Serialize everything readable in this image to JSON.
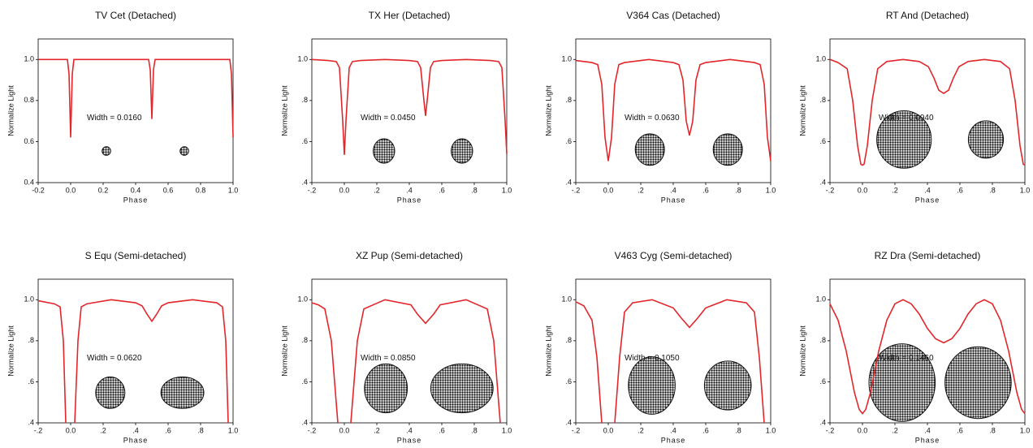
{
  "chart_data": [
    {
      "type": "line",
      "title": "TV Cet (Detached)",
      "xlabel": "Phase",
      "ylabel": "Normalize Light",
      "annotation": "Width = 0.0160",
      "color": "#e3262b",
      "xlim": [
        -0.2,
        1.0
      ],
      "ylim": [
        0.4,
        1.1
      ],
      "xticks": [
        {
          "value": -0.2,
          "label": "-0.2"
        },
        {
          "value": 0,
          "label": "0.0"
        },
        0.2,
        0.4,
        0.6,
        0.8,
        {
          "value": 1,
          "label": "1.0"
        }
      ],
      "yticks": [
        0.4,
        0.6,
        0.8,
        {
          "value": 1,
          "label": "1.0"
        }
      ],
      "x": [
        -0.2,
        -0.02,
        -0.01,
        0,
        0.01,
        0.02,
        0.48,
        0.49,
        0.5,
        0.51,
        0.52,
        0.98,
        0.99,
        1.0
      ],
      "values": [
        1,
        1,
        0.93,
        0.62,
        0.93,
        1,
        1,
        0.95,
        0.71,
        0.95,
        1,
        1,
        0.93,
        0.62
      ]
    },
    {
      "type": "line",
      "title": "TX Her (Detached)",
      "xlabel": "Phase",
      "ylabel": "Normalize Light",
      "annotation": "Width = 0.0450",
      "color": "#e3262b",
      "xlim": [
        -0.2,
        1.0
      ],
      "ylim": [
        0.4,
        1.1
      ],
      "xticks": [
        {
          "value": -0.2,
          "label": "-.2"
        },
        {
          "value": 0,
          "label": "0.0"
        },
        {
          "value": 0.2,
          "label": ".2"
        },
        {
          "value": 0.4,
          "label": ".4"
        },
        {
          "value": 0.6,
          "label": ".6"
        },
        {
          "value": 0.8,
          "label": ".8"
        },
        {
          "value": 1,
          "label": "1.0"
        }
      ],
      "yticks": [
        {
          "value": 0.4,
          "label": ".4"
        },
        {
          "value": 0.6,
          "label": ".6"
        },
        {
          "value": 0.8,
          "label": ".8"
        },
        {
          "value": 1,
          "label": "1.0"
        }
      ],
      "x": [
        -0.2,
        -0.1,
        -0.05,
        -0.03,
        -0.01,
        0,
        0.01,
        0.03,
        0.05,
        0.1,
        0.25,
        0.4,
        0.45,
        0.47,
        0.49,
        0.5,
        0.51,
        0.53,
        0.55,
        0.6,
        0.75,
        0.9,
        0.95,
        0.97,
        0.99,
        1.0
      ],
      "values": [
        1.0,
        0.995,
        0.99,
        0.96,
        0.7,
        0.535,
        0.7,
        0.96,
        0.99,
        0.995,
        1.0,
        0.995,
        0.99,
        0.96,
        0.8,
        0.725,
        0.8,
        0.96,
        0.99,
        0.995,
        1.0,
        0.995,
        0.99,
        0.96,
        0.7,
        0.54
      ]
    },
    {
      "type": "line",
      "title": "V364 Cas (Detached)",
      "xlabel": "Phase",
      "ylabel": "Normalize Light",
      "annotation": "Width = 0.0630",
      "color": "#e3262b",
      "xlim": [
        -0.2,
        1.0
      ],
      "ylim": [
        0.4,
        1.1
      ],
      "xticks": [
        {
          "value": -0.2,
          "label": "-.2"
        },
        {
          "value": 0,
          "label": "0.0"
        },
        {
          "value": 0.2,
          "label": ".2"
        },
        {
          "value": 0.4,
          "label": ".4"
        },
        {
          "value": 0.6,
          "label": ".6"
        },
        {
          "value": 0.8,
          "label": ".8"
        },
        {
          "value": 1,
          "label": "1.0"
        }
      ],
      "yticks": [
        {
          "value": 0.4,
          "label": ".4"
        },
        {
          "value": 0.6,
          "label": ".6"
        },
        {
          "value": 0.8,
          "label": ".8"
        },
        {
          "value": 1,
          "label": "1.0"
        }
      ],
      "x": [
        -0.2,
        -0.1,
        -0.065,
        -0.04,
        -0.02,
        0,
        0.02,
        0.04,
        0.065,
        0.1,
        0.25,
        0.4,
        0.435,
        0.46,
        0.48,
        0.5,
        0.52,
        0.54,
        0.565,
        0.6,
        0.75,
        0.9,
        0.935,
        0.96,
        0.98,
        1.0
      ],
      "values": [
        0.995,
        0.985,
        0.975,
        0.88,
        0.62,
        0.505,
        0.62,
        0.88,
        0.975,
        0.985,
        1.0,
        0.985,
        0.975,
        0.9,
        0.7,
        0.63,
        0.7,
        0.9,
        0.975,
        0.985,
        1.0,
        0.985,
        0.975,
        0.88,
        0.62,
        0.505
      ]
    },
    {
      "type": "line",
      "title": "RT And (Detached)",
      "xlabel": "Phase",
      "ylabel": "Normalize Light",
      "annotation": "Width = 0.0940",
      "color": "#e3262b",
      "xlim": [
        -0.2,
        1.0
      ],
      "ylim": [
        0.4,
        1.1
      ],
      "xticks": [
        {
          "value": -0.2,
          "label": "-.2"
        },
        {
          "value": 0,
          "label": "0.0"
        },
        {
          "value": 0.2,
          "label": ".2"
        },
        {
          "value": 0.4,
          "label": ".4"
        },
        {
          "value": 0.6,
          "label": ".6"
        },
        {
          "value": 0.8,
          "label": ".8"
        },
        {
          "value": 1,
          "label": "1.0"
        }
      ],
      "yticks": [
        {
          "value": 0.4,
          "label": ".4"
        },
        {
          "value": 0.6,
          "label": ".6"
        },
        {
          "value": 0.8,
          "label": ".8"
        },
        {
          "value": 1,
          "label": "1.0"
        }
      ],
      "x": [
        -0.2,
        -0.15,
        -0.094,
        -0.06,
        -0.03,
        -0.01,
        0,
        0.01,
        0.03,
        0.06,
        0.094,
        0.15,
        0.25,
        0.35,
        0.406,
        0.44,
        0.47,
        0.5,
        0.53,
        0.56,
        0.594,
        0.65,
        0.75,
        0.85,
        0.906,
        0.94,
        0.97,
        0.99,
        1.0
      ],
      "values": [
        1.0,
        0.985,
        0.955,
        0.8,
        0.58,
        0.49,
        0.485,
        0.49,
        0.58,
        0.8,
        0.955,
        0.99,
        1.0,
        0.99,
        0.965,
        0.91,
        0.85,
        0.835,
        0.85,
        0.91,
        0.965,
        0.99,
        1.0,
        0.99,
        0.955,
        0.8,
        0.58,
        0.49,
        0.485
      ]
    },
    {
      "type": "line",
      "title": "S Equ (Semi-detached)",
      "xlabel": "Phase",
      "ylabel": "Normalize Light",
      "annotation": "Width = 0.0620",
      "color": "#e3262b",
      "xlim": [
        -0.2,
        1.0
      ],
      "ylim": [
        0.4,
        1.1
      ],
      "xticks": [
        {
          "value": -0.2,
          "label": "-.2"
        },
        {
          "value": 0,
          "label": "0.0"
        },
        {
          "value": 0.2,
          "label": ".2"
        },
        {
          "value": 0.4,
          "label": ".4"
        },
        {
          "value": 0.6,
          "label": ".6"
        },
        {
          "value": 0.8,
          "label": ".8"
        },
        {
          "value": 1,
          "label": "1.0"
        }
      ],
      "yticks": [
        {
          "value": 0.4,
          "label": ".4"
        },
        {
          "value": 0.6,
          "label": ".6"
        },
        {
          "value": 0.8,
          "label": ".8"
        },
        {
          "value": 1,
          "label": "1.0"
        }
      ],
      "x": [
        -0.2,
        -0.1,
        -0.065,
        -0.045,
        -0.03,
        0,
        0.025,
        0.045,
        0.065,
        0.1,
        0.25,
        0.4,
        0.44,
        0.47,
        0.5,
        0.53,
        0.56,
        0.6,
        0.75,
        0.9,
        0.935,
        0.955,
        0.97
      ],
      "values": [
        0.995,
        0.98,
        0.965,
        0.8,
        0.4,
        null,
        0.4,
        0.8,
        0.965,
        0.98,
        1.0,
        0.985,
        0.97,
        0.93,
        0.895,
        0.93,
        0.97,
        0.985,
        1.0,
        0.985,
        0.965,
        0.8,
        0.4
      ]
    },
    {
      "type": "line",
      "title": "XZ Pup (Semi-detached)",
      "xlabel": "Phase",
      "ylabel": "Normalize Light",
      "annotation": "Width = 0.0850",
      "color": "#e3262b",
      "xlim": [
        -0.2,
        1.0
      ],
      "ylim": [
        0.4,
        1.1
      ],
      "xticks": [
        {
          "value": -0.2,
          "label": "-.2"
        },
        {
          "value": 0,
          "label": "0.0"
        },
        {
          "value": 0.2,
          "label": ".2"
        },
        {
          "value": 0.4,
          "label": ".4"
        },
        {
          "value": 0.6,
          "label": ".6"
        },
        {
          "value": 0.8,
          "label": ".8"
        },
        {
          "value": 1,
          "label": "1.0"
        }
      ],
      "yticks": [
        {
          "value": 0.4,
          "label": ".4"
        },
        {
          "value": 0.6,
          "label": ".6"
        },
        {
          "value": 0.8,
          "label": ".8"
        },
        {
          "value": 1,
          "label": "1.0"
        }
      ],
      "x": [
        -0.2,
        -0.16,
        -0.12,
        -0.08,
        -0.04,
        0,
        0.04,
        0.08,
        0.12,
        0.25,
        0.41,
        0.45,
        0.5,
        0.55,
        0.59,
        0.75,
        0.88,
        0.92,
        0.96
      ],
      "values": [
        0.985,
        0.975,
        0.955,
        0.8,
        0.4,
        null,
        0.4,
        0.8,
        0.955,
        1.0,
        0.975,
        0.93,
        0.885,
        0.93,
        0.975,
        1.0,
        0.955,
        0.8,
        0.4
      ]
    },
    {
      "type": "line",
      "title": "V463 Cyg (Semi-detached)",
      "xlabel": "Phase",
      "ylabel": "Normalize Light",
      "annotation": "Width = 0.1050",
      "color": "#e3262b",
      "xlim": [
        -0.2,
        1.0
      ],
      "ylim": [
        0.4,
        1.1
      ],
      "xticks": [
        {
          "value": -0.2,
          "label": "-.2"
        },
        {
          "value": 0,
          "label": "0.0"
        },
        {
          "value": 0.2,
          "label": ".2"
        },
        {
          "value": 0.4,
          "label": ".4"
        },
        {
          "value": 0.6,
          "label": ".6"
        },
        {
          "value": 0.8,
          "label": ".8"
        },
        {
          "value": 1,
          "label": "1.0"
        }
      ],
      "yticks": [
        {
          "value": 0.4,
          "label": ".4"
        },
        {
          "value": 0.6,
          "label": ".6"
        },
        {
          "value": 0.8,
          "label": ".8"
        },
        {
          "value": 1,
          "label": "1.0"
        }
      ],
      "x": [
        -0.2,
        -0.15,
        -0.1,
        -0.07,
        -0.04,
        0,
        0.04,
        0.07,
        0.1,
        0.15,
        0.27,
        0.4,
        0.45,
        0.5,
        0.55,
        0.6,
        0.73,
        0.85,
        0.9,
        0.93,
        0.96
      ],
      "values": [
        0.99,
        0.97,
        0.9,
        0.72,
        0.4,
        null,
        0.4,
        0.72,
        0.94,
        0.985,
        1.0,
        0.96,
        0.91,
        0.865,
        0.91,
        0.96,
        1.0,
        0.985,
        0.94,
        0.72,
        0.4
      ]
    },
    {
      "type": "line",
      "title": "RZ Dra (Semi-detached)",
      "xlabel": "Phase",
      "ylabel": "Normalize Light",
      "annotation": "Width = 0.1460",
      "color": "#e3262b",
      "xlim": [
        -0.2,
        1.0
      ],
      "ylim": [
        0.4,
        1.1
      ],
      "xticks": [
        {
          "value": -0.2,
          "label": "-.2"
        },
        {
          "value": 0,
          "label": "0.0"
        },
        {
          "value": 0.2,
          "label": ".2"
        },
        {
          "value": 0.4,
          "label": ".4"
        },
        {
          "value": 0.6,
          "label": ".6"
        },
        {
          "value": 0.8,
          "label": ".8"
        },
        {
          "value": 1,
          "label": "1.0"
        }
      ],
      "yticks": [
        {
          "value": 0.4,
          "label": ".4"
        },
        {
          "value": 0.6,
          "label": ".6"
        },
        {
          "value": 0.8,
          "label": ".8"
        },
        {
          "value": 1,
          "label": "1.0"
        }
      ],
      "x": [
        -0.2,
        -0.15,
        -0.1,
        -0.05,
        -0.02,
        0,
        0.02,
        0.05,
        0.1,
        0.15,
        0.2,
        0.25,
        0.3,
        0.35,
        0.4,
        0.45,
        0.5,
        0.55,
        0.6,
        0.65,
        0.7,
        0.75,
        0.8,
        0.85,
        0.9,
        0.95,
        0.98,
        1.0
      ],
      "values": [
        0.98,
        0.9,
        0.75,
        0.55,
        0.465,
        0.445,
        0.465,
        0.55,
        0.75,
        0.9,
        0.98,
        1.0,
        0.98,
        0.93,
        0.86,
        0.81,
        0.79,
        0.81,
        0.86,
        0.93,
        0.98,
        1.0,
        0.98,
        0.9,
        0.75,
        0.55,
        0.465,
        0.445
      ]
    }
  ]
}
